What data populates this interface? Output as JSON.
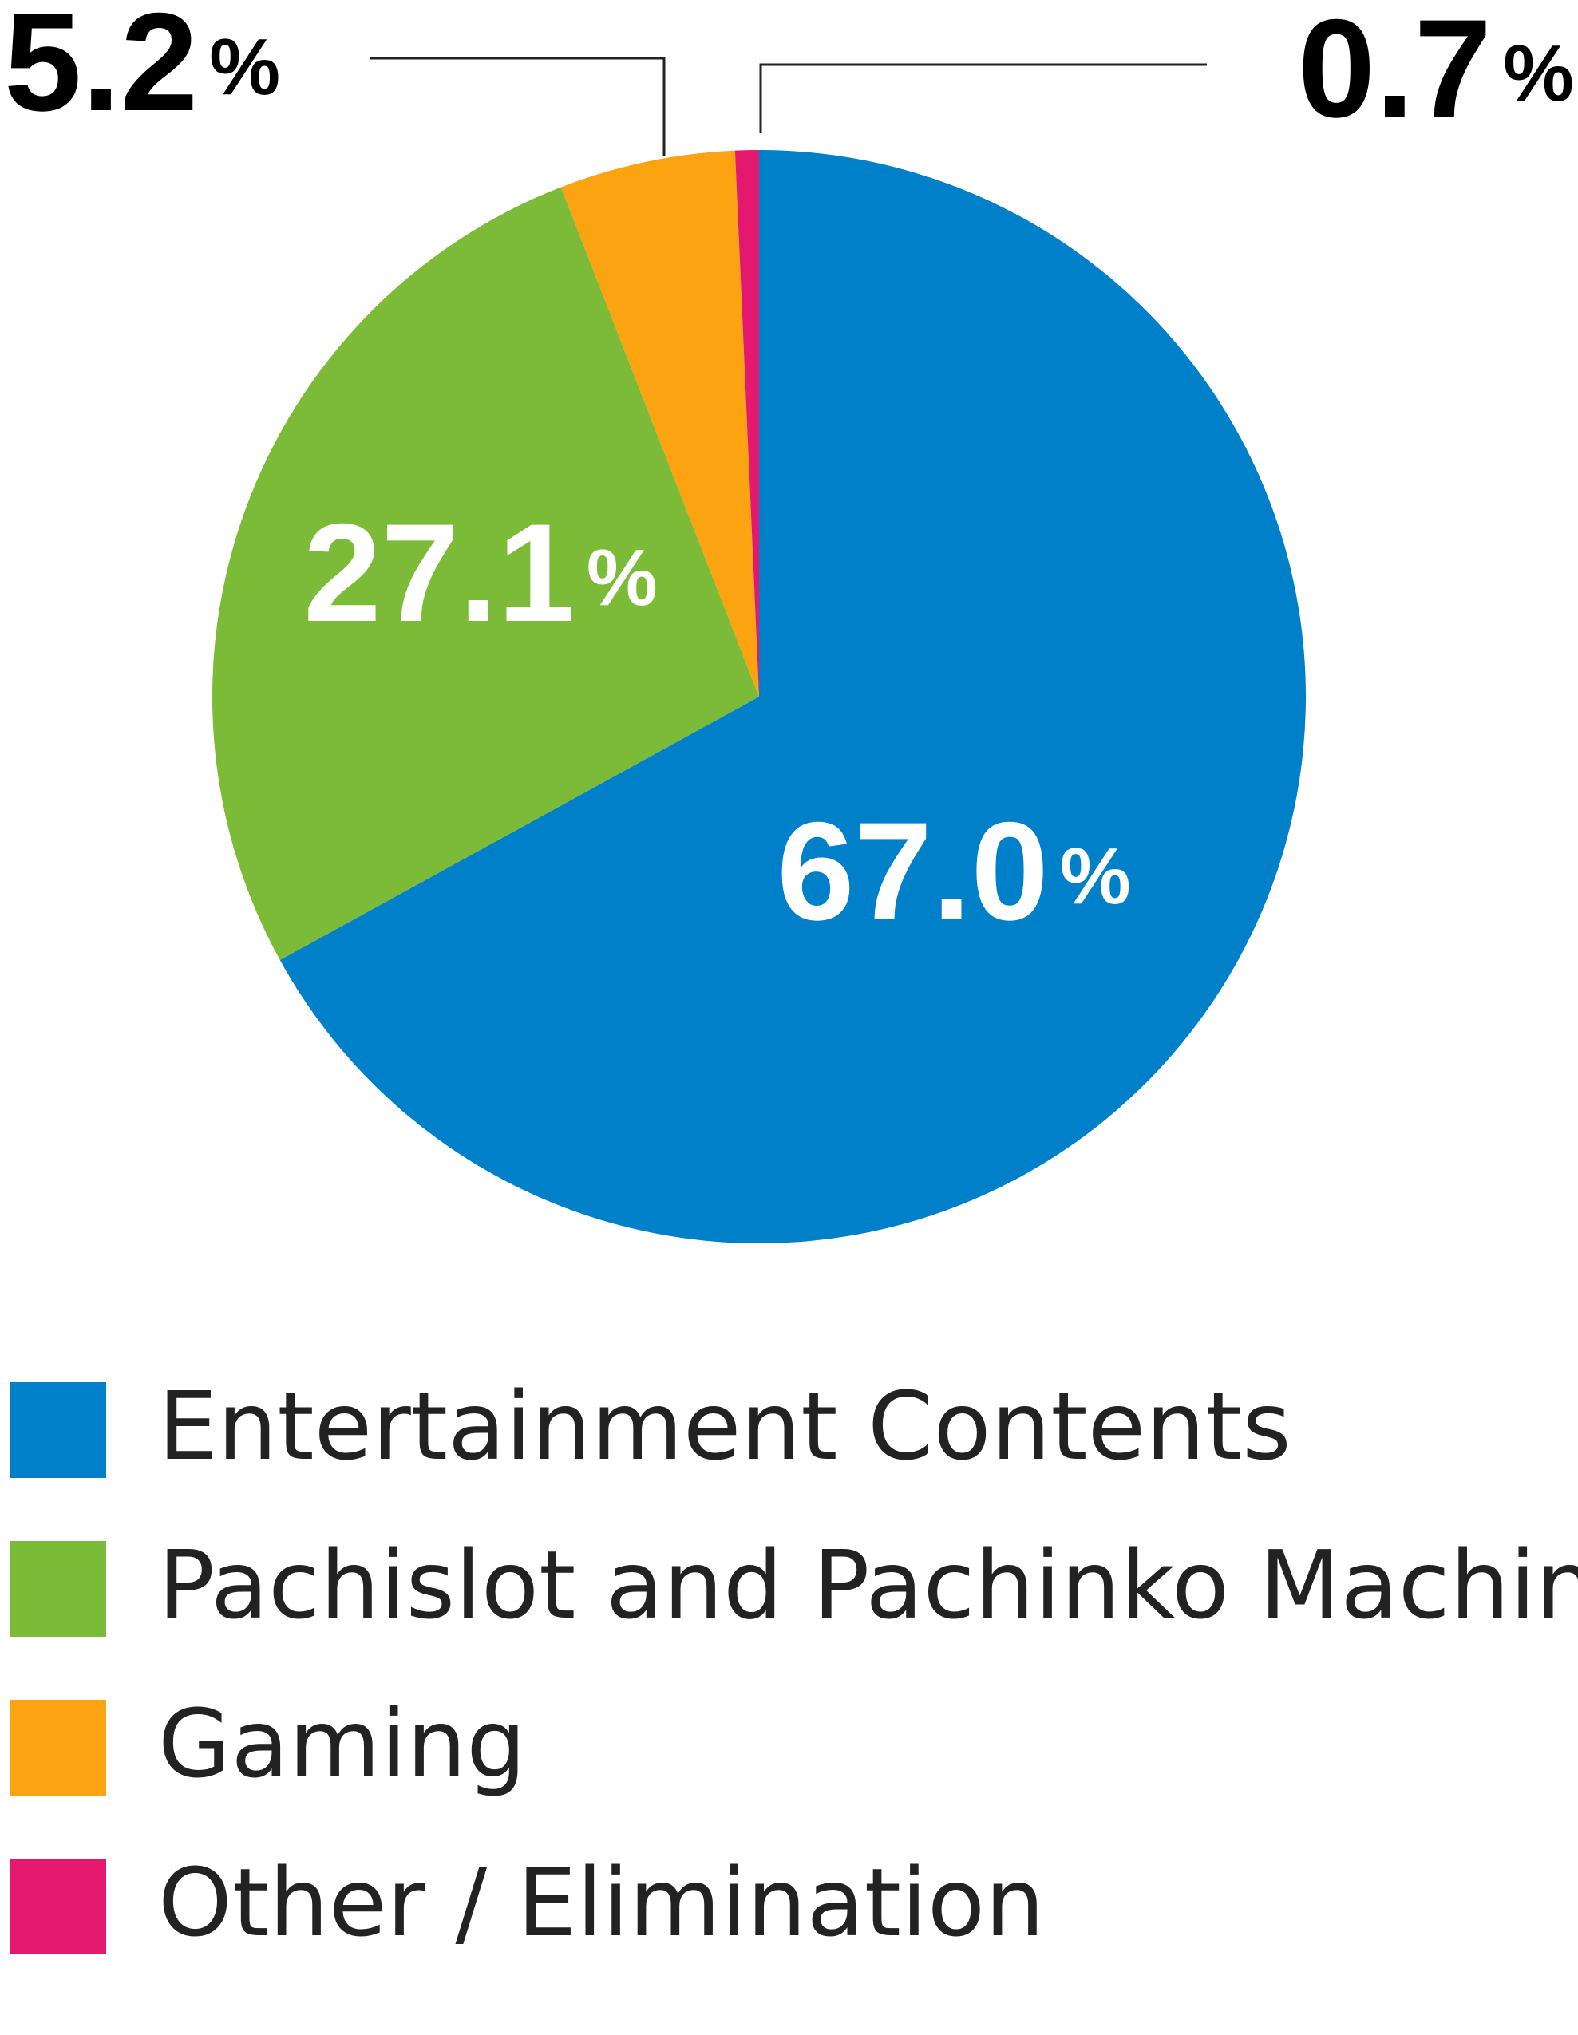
{
  "chart_data": {
    "type": "pie",
    "categories": [
      "Entertainment Contents",
      "Pachislot and Pachinko Machines",
      "Gaming",
      "Other / Elimination"
    ],
    "values": [
      67.0,
      27.1,
      5.2,
      0.7
    ],
    "value_labels": [
      "67.0%",
      "27.1%",
      "5.2%",
      "0.7%"
    ],
    "colors": [
      "#0080c8",
      "#7cbb37",
      "#fca311",
      "#e5186f"
    ]
  }
}
